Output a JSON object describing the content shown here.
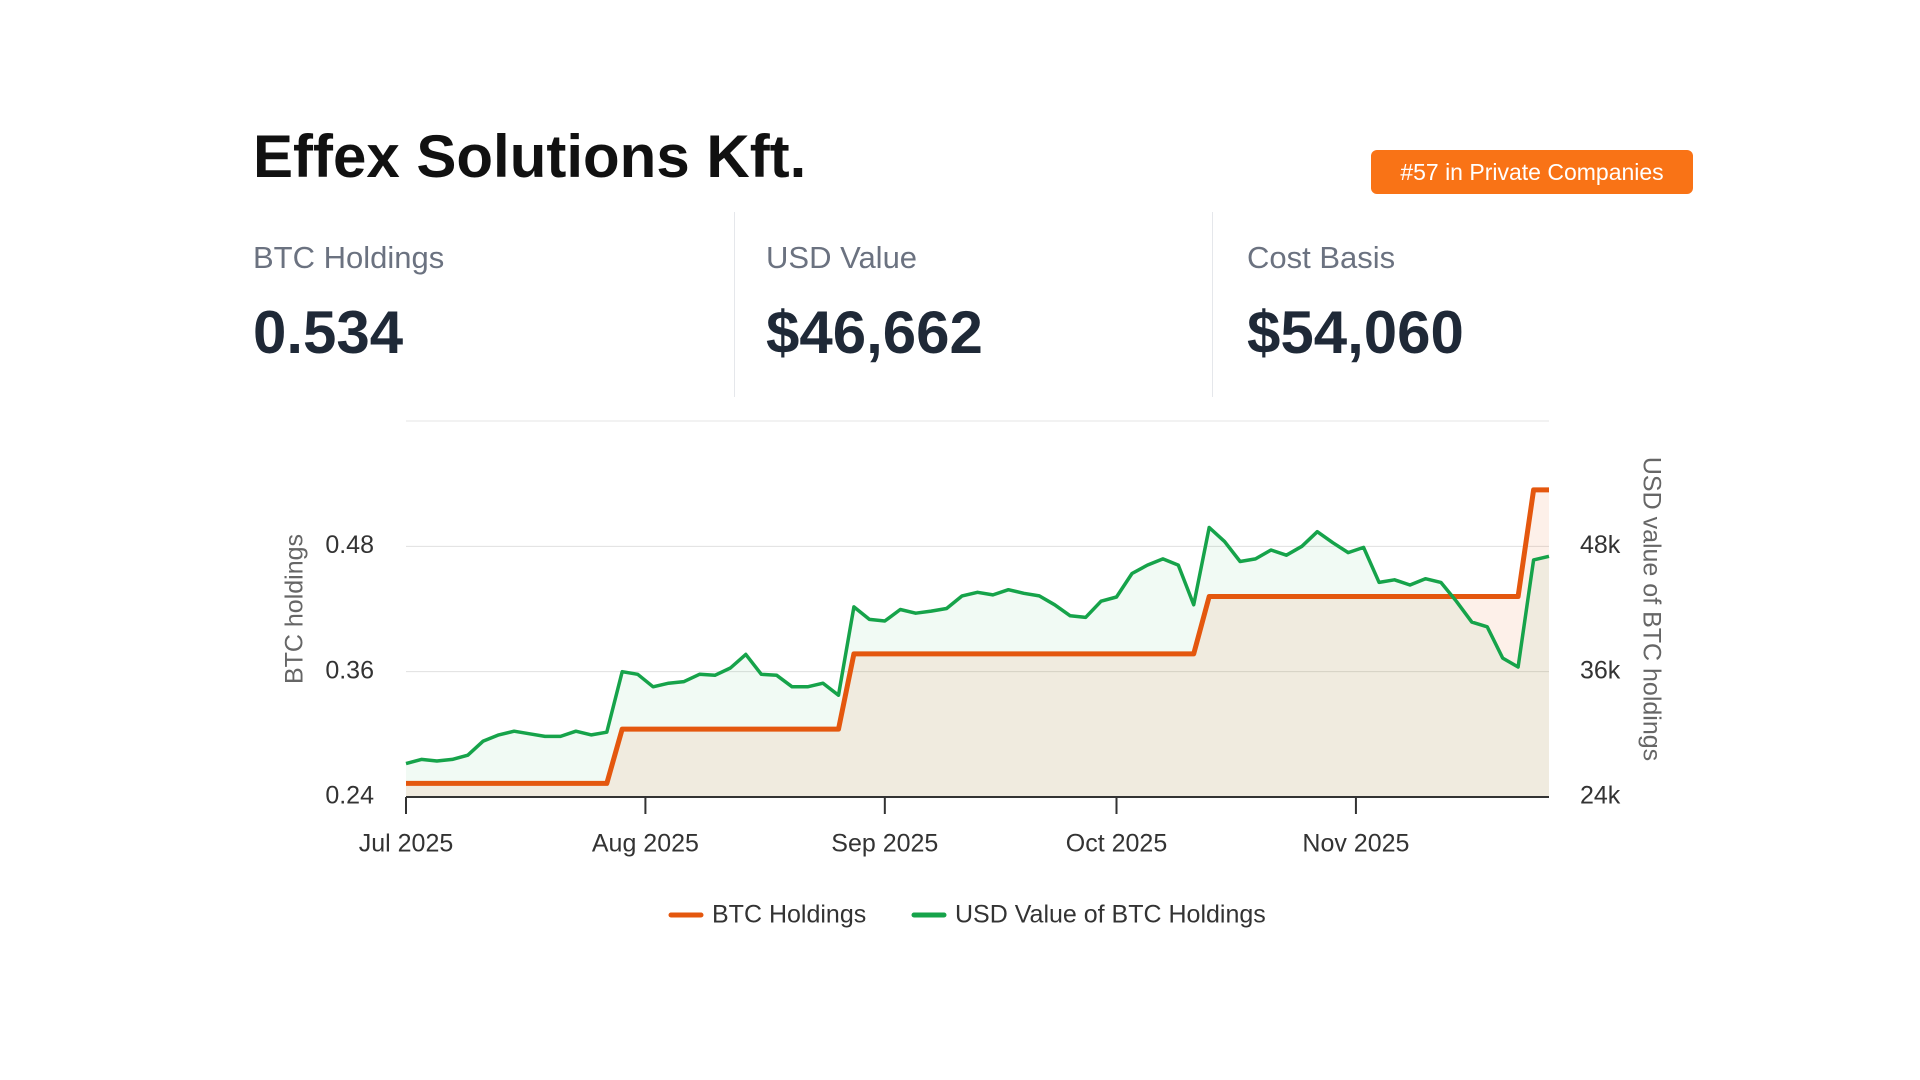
{
  "header": {
    "title": "Effex Solutions Kft.",
    "badge": "#57 in Private Companies"
  },
  "stats": [
    {
      "label": "BTC Holdings",
      "value": "0.534"
    },
    {
      "label": "USD Value",
      "value": "$46,662"
    },
    {
      "label": "Cost Basis",
      "value": "$54,060"
    }
  ],
  "chart_data": {
    "type": "line",
    "y_label": "BTC holdings",
    "y2_label": "USD value of BTC holdings",
    "x": [
      0,
      2,
      4,
      6,
      8,
      10,
      12,
      14,
      16,
      18,
      20,
      22,
      24,
      26,
      28,
      30,
      32,
      34,
      36,
      38,
      40,
      42,
      44,
      46,
      48,
      50,
      52,
      54,
      56,
      58,
      60,
      62,
      64,
      66,
      68,
      70,
      72,
      74,
      76,
      78,
      80,
      82,
      84,
      86,
      88,
      90,
      92,
      94,
      96,
      98,
      100,
      102,
      104,
      106,
      108,
      110,
      112,
      114,
      116,
      118,
      120,
      122,
      124,
      126,
      128,
      130,
      132,
      134,
      136,
      138,
      140,
      142,
      144,
      146,
      148
    ],
    "xlim": [
      0,
      148
    ],
    "xticks": [
      {
        "value": 0,
        "label": "Jul 2025"
      },
      {
        "value": 31,
        "label": "Aug 2025"
      },
      {
        "value": 62,
        "label": "Sep 2025"
      },
      {
        "value": 92,
        "label": "Oct 2025"
      },
      {
        "value": 123,
        "label": "Nov 2025"
      }
    ],
    "ylim": [
      0.24,
      0.6
    ],
    "yticks": [
      0.24,
      0.36,
      0.48
    ],
    "y2lim": [
      24000,
      60000
    ],
    "y2ticks": [
      {
        "value": 24000,
        "label": "24k"
      },
      {
        "value": 36000,
        "label": "36k"
      },
      {
        "value": 48000,
        "label": "48k"
      }
    ],
    "grid": true,
    "series": [
      {
        "name": "BTC Holdings",
        "color": "#e4570e",
        "values": [
          0.253,
          0.253,
          0.253,
          0.253,
          0.253,
          0.253,
          0.253,
          0.253,
          0.253,
          0.253,
          0.253,
          0.253,
          0.253,
          0.253,
          0.305,
          0.305,
          0.305,
          0.305,
          0.305,
          0.305,
          0.305,
          0.305,
          0.305,
          0.305,
          0.305,
          0.305,
          0.305,
          0.305,
          0.305,
          0.377,
          0.377,
          0.377,
          0.377,
          0.377,
          0.377,
          0.377,
          0.377,
          0.377,
          0.377,
          0.377,
          0.377,
          0.377,
          0.377,
          0.377,
          0.377,
          0.377,
          0.377,
          0.377,
          0.377,
          0.377,
          0.377,
          0.377,
          0.432,
          0.432,
          0.432,
          0.432,
          0.432,
          0.432,
          0.432,
          0.432,
          0.432,
          0.432,
          0.432,
          0.432,
          0.432,
          0.432,
          0.432,
          0.432,
          0.432,
          0.432,
          0.432,
          0.432,
          0.432,
          0.534,
          0.534
        ]
      },
      {
        "name": "USD Value of BTC Holdings",
        "color": "#16a34a",
        "axis": "y2",
        "values": [
          27200,
          27600,
          27450,
          27600,
          28000,
          29350,
          29950,
          30300,
          30050,
          29800,
          29800,
          30300,
          29950,
          30200,
          36000,
          35750,
          34550,
          34900,
          35050,
          35750,
          35650,
          36350,
          37650,
          35750,
          35650,
          34550,
          34550,
          34900,
          33750,
          42200,
          41000,
          40850,
          41950,
          41600,
          41800,
          42050,
          43250,
          43600,
          43350,
          43850,
          43500,
          43250,
          42400,
          41350,
          41200,
          42750,
          43150,
          45400,
          46200,
          46800,
          46200,
          42400,
          49800,
          48450,
          46550,
          46800,
          47650,
          47150,
          48000,
          49400,
          48350,
          47400,
          47900,
          44550,
          44800,
          44300,
          44900,
          44550,
          42750,
          40750,
          40300,
          37300,
          36450,
          46700,
          47050
        ]
      }
    ]
  }
}
